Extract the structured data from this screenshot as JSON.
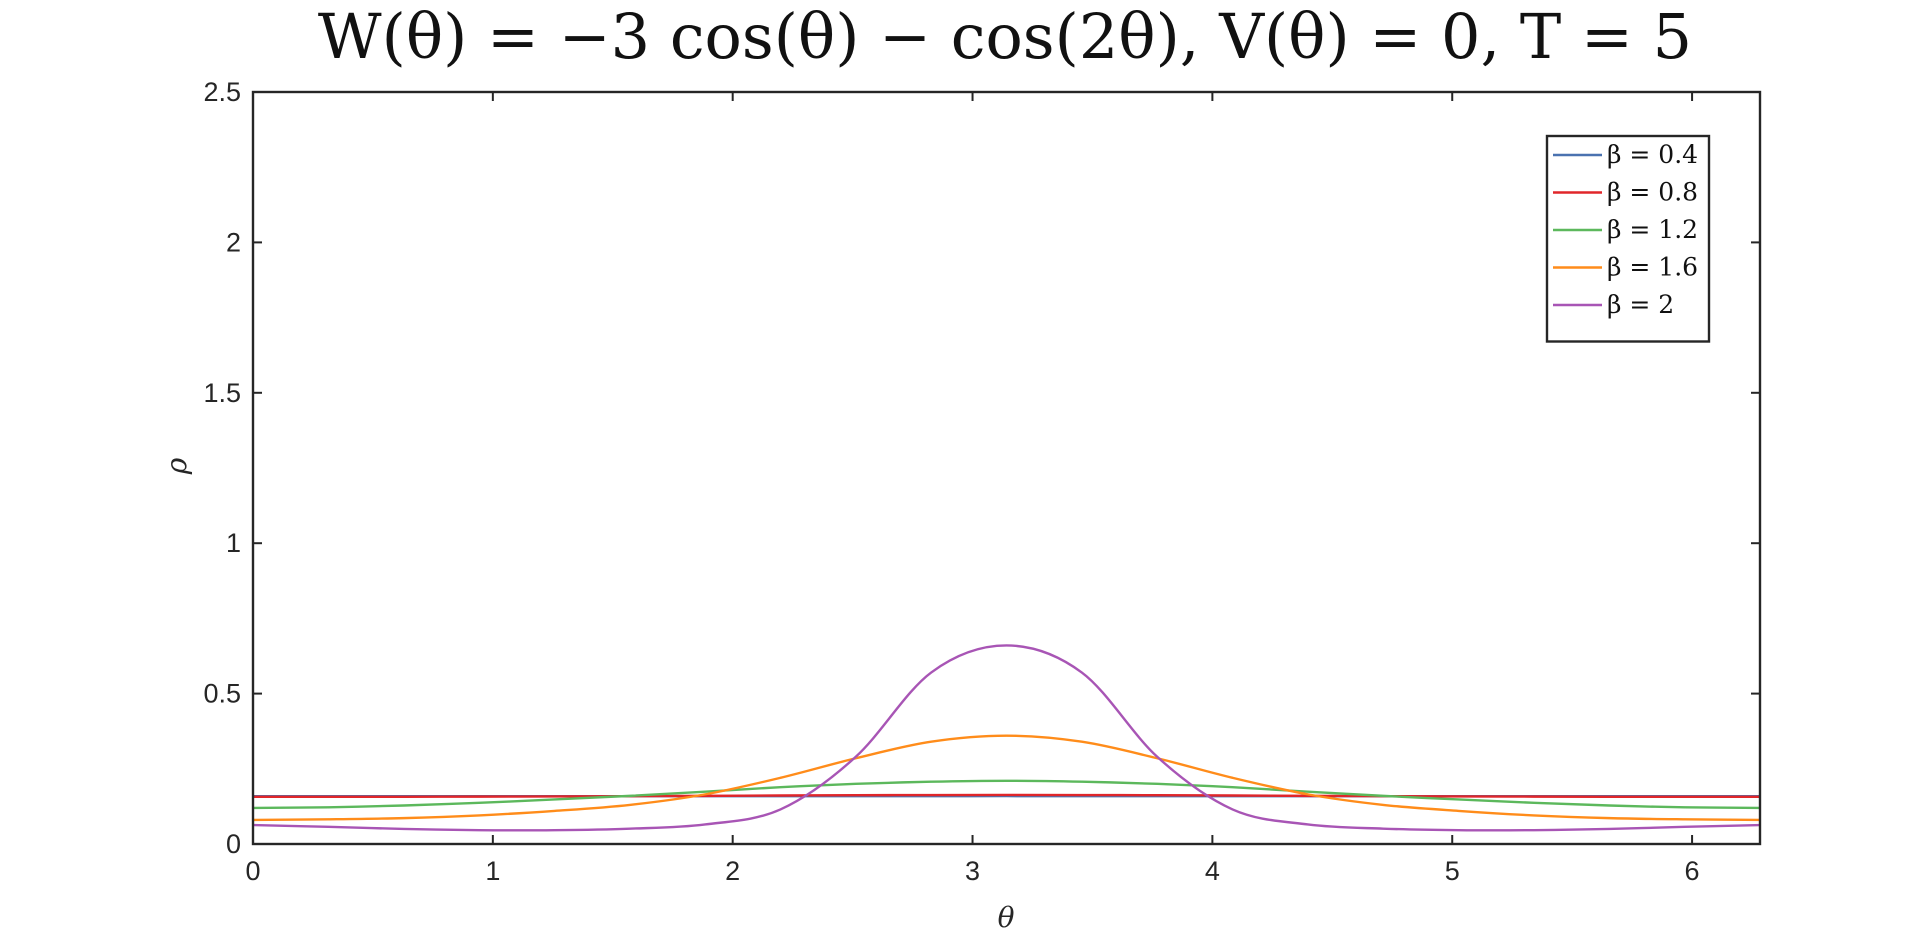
{
  "chart_data": {
    "type": "line",
    "title": "W(θ) = −3 cos(θ) − cos(2θ), V(θ) = 0, T = 5",
    "xlabel": "θ",
    "ylabel": "ρ",
    "xlim": [
      0,
      6.2832
    ],
    "ylim": [
      0,
      2.5
    ],
    "x_ticks": [
      "0",
      "1",
      "2",
      "3",
      "4",
      "5",
      "6"
    ],
    "y_ticks": [
      "0",
      "0.5",
      "1",
      "1.5",
      "2",
      "2.5"
    ],
    "grid": false,
    "legend_position": "top-right",
    "x": [
      0,
      0.3142,
      0.6283,
      0.9425,
      1.2566,
      1.5708,
      1.885,
      2.1991,
      2.5133,
      2.8274,
      3.1416,
      3.4558,
      3.7699,
      4.0841,
      4.3982,
      4.7124,
      5.0265,
      5.3407,
      5.6549,
      5.969,
      6.2832
    ],
    "series": [
      {
        "name": "β = 0.4",
        "color": "#4a72b0",
        "values": [
          0.1591,
          0.1591,
          0.1591,
          0.1591,
          0.1591,
          0.1591,
          0.1591,
          0.1591,
          0.1591,
          0.1591,
          0.1592,
          0.1591,
          0.1591,
          0.1591,
          0.1591,
          0.1591,
          0.1591,
          0.1591,
          0.1591,
          0.1591,
          0.1591
        ]
      },
      {
        "name": "β = 0.8",
        "color": "#e0262a",
        "values": [
          0.157,
          0.157,
          0.157,
          0.1575,
          0.158,
          0.159,
          0.16,
          0.1612,
          0.1622,
          0.1628,
          0.163,
          0.1628,
          0.1622,
          0.1612,
          0.16,
          0.159,
          0.158,
          0.1575,
          0.157,
          0.157,
          0.157
        ]
      },
      {
        "name": "β = 1.2",
        "color": "#5cb85c",
        "values": [
          0.12,
          0.122,
          0.128,
          0.137,
          0.148,
          0.16,
          0.174,
          0.189,
          0.2,
          0.207,
          0.21,
          0.207,
          0.2,
          0.189,
          0.174,
          0.16,
          0.148,
          0.137,
          0.128,
          0.122,
          0.12
        ]
      },
      {
        "name": "β = 1.6",
        "color": "#ff8c1a",
        "values": [
          0.08,
          0.082,
          0.086,
          0.095,
          0.11,
          0.13,
          0.165,
          0.22,
          0.285,
          0.34,
          0.36,
          0.34,
          0.285,
          0.22,
          0.165,
          0.13,
          0.11,
          0.095,
          0.086,
          0.082,
          0.08
        ]
      },
      {
        "name": "β = 2",
        "color": "#a855b5",
        "values": [
          0.063,
          0.057,
          0.05,
          0.046,
          0.046,
          0.051,
          0.065,
          0.115,
          0.29,
          0.57,
          0.66,
          0.57,
          0.29,
          0.115,
          0.065,
          0.051,
          0.046,
          0.046,
          0.05,
          0.057,
          0.063
        ]
      }
    ]
  }
}
